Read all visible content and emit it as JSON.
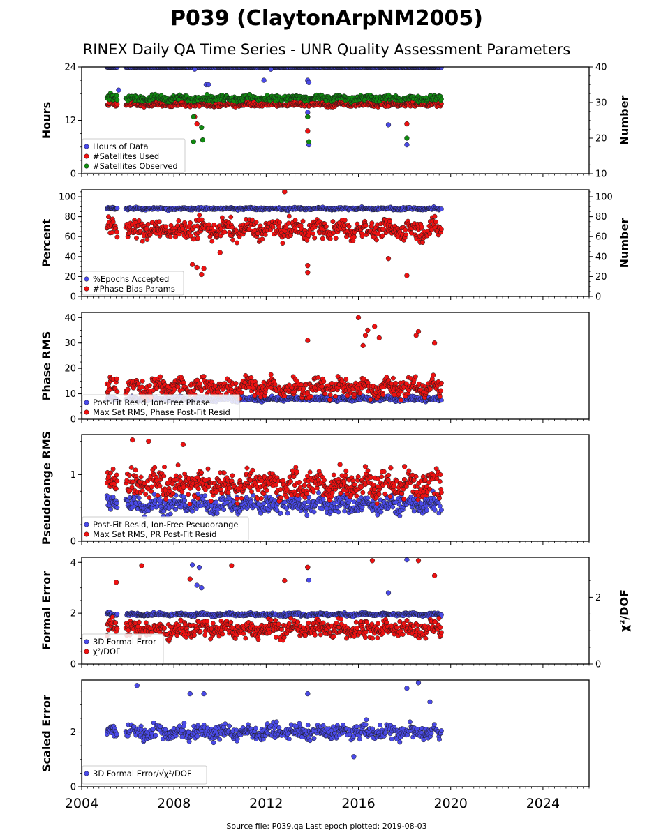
{
  "title": "P039 (ClaytonArpNM2005)",
  "subtitle": "RINEX Daily QA Time Series - UNR Quality Assessment Parameters",
  "footer": "Source file: P039.qa Last epoch plotted: 2019-08-03",
  "colors": {
    "blue": "#4a4ae8",
    "red": "#ee1111",
    "green": "#108a10",
    "edge": "#1a1a1a"
  },
  "chart_data": [
    {
      "type": "scatter",
      "ylabel": "Hours",
      "ylabel_right": "Number",
      "xlim": [
        2004,
        2026
      ],
      "ylim": [
        0,
        24
      ],
      "ylim_right": [
        10,
        40
      ],
      "yticks": [
        "0",
        "12",
        "24"
      ],
      "yticks_right": [
        "10",
        "20",
        "30",
        "40"
      ],
      "series": [
        {
          "name": "Hours of Data",
          "color": "blue",
          "axis": "left",
          "typical": 23.9,
          "spread": 0.05,
          "range": [
            2005.1,
            2019.6
          ],
          "outliers": [
            [
              2005.6,
              18.8
            ],
            [
              2008.9,
              23.5
            ],
            [
              2009.4,
              20
            ],
            [
              2009.5,
              20
            ],
            [
              2011.9,
              21
            ],
            [
              2012.2,
              23.5
            ],
            [
              2013.8,
              21
            ],
            [
              2013.85,
              20.5
            ],
            [
              2013.8,
              13.8
            ],
            [
              2013.85,
              6.5
            ],
            [
              2017.3,
              11
            ],
            [
              2018.1,
              6.5
            ]
          ]
        },
        {
          "name": "#Satellites Used",
          "color": "red",
          "axis": "right",
          "typical": 29.5,
          "spread": 0.6,
          "range": [
            2005.1,
            2019.6
          ],
          "outliers": [
            [
              2005.2,
              30
            ],
            [
              2008.9,
              26
            ],
            [
              2009.0,
              24
            ],
            [
              2009.1,
              29
            ],
            [
              2009.8,
              30
            ],
            [
              2013.8,
              26
            ],
            [
              2013.8,
              22
            ],
            [
              2017.3,
              29
            ],
            [
              2018.1,
              24
            ]
          ]
        },
        {
          "name": "#Satellites Observed",
          "color": "green",
          "axis": "right",
          "typical": 31.2,
          "spread": 0.8,
          "range": [
            2005.1,
            2019.6
          ],
          "outliers": [
            [
              2008.85,
              26
            ],
            [
              2008.85,
              19
            ],
            [
              2009.2,
              23
            ],
            [
              2009.25,
              19.5
            ],
            [
              2013.8,
              26
            ],
            [
              2013.85,
              19
            ],
            [
              2018.1,
              20
            ]
          ]
        }
      ]
    },
    {
      "type": "scatter",
      "ylabel": "Percent",
      "ylabel_right": "Number",
      "xlim": [
        2004,
        2026
      ],
      "ylim": [
        0,
        107
      ],
      "ylim_right": [
        0,
        107
      ],
      "yticks": [
        "0",
        "20",
        "40",
        "60",
        "80",
        "100"
      ],
      "yticks_right": [
        "0",
        "20",
        "40",
        "60",
        "80",
        "100"
      ],
      "series": [
        {
          "name": "%Epochs Accepted",
          "color": "blue",
          "axis": "left",
          "typical": 88,
          "spread": 1.2,
          "range": [
            2005.1,
            2019.6
          ],
          "outliers": []
        },
        {
          "name": "#Phase Bias Params",
          "color": "red",
          "axis": "right",
          "typical": 67,
          "spread": 9,
          "range": [
            2005.1,
            2019.6
          ],
          "outliers": [
            [
              2008.8,
              32
            ],
            [
              2009.0,
              29
            ],
            [
              2009.2,
              22
            ],
            [
              2009.3,
              28
            ],
            [
              2010.0,
              44
            ],
            [
              2012.8,
              105
            ],
            [
              2013.8,
              31
            ],
            [
              2013.8,
              24
            ],
            [
              2017.3,
              38
            ],
            [
              2018.1,
              21
            ]
          ]
        }
      ]
    },
    {
      "type": "scatter",
      "ylabel": "Phase RMS",
      "xlim": [
        2004,
        2026
      ],
      "ylim": [
        0,
        42
      ],
      "yticks": [
        "0",
        "10",
        "20",
        "30",
        "40"
      ],
      "series": [
        {
          "name": "Post-Fit Resid, Ion-Free Phase",
          "color": "blue",
          "axis": "left",
          "typical": 8,
          "spread": 0.9,
          "range": [
            2005.1,
            2019.6
          ],
          "outliers": []
        },
        {
          "name": "Max Sat RMS, Phase Post-Fit Resid",
          "color": "red",
          "axis": "left",
          "typical": 12.5,
          "spread": 3.5,
          "range": [
            2005.1,
            2019.6
          ],
          "outliers": [
            [
              2013.8,
              31
            ],
            [
              2016.0,
              40
            ],
            [
              2016.2,
              29
            ],
            [
              2016.3,
              33
            ],
            [
              2016.4,
              35
            ],
            [
              2016.7,
              36.5
            ],
            [
              2016.9,
              32
            ],
            [
              2018.5,
              33
            ],
            [
              2018.6,
              34.5
            ],
            [
              2019.3,
              30
            ]
          ]
        }
      ]
    },
    {
      "type": "scatter",
      "ylabel": "Pseudorange RMS",
      "xlim": [
        2004,
        2026
      ],
      "ylim": [
        0,
        1.6
      ],
      "yticks": [
        "0",
        "1"
      ],
      "series": [
        {
          "name": "Post-Fit Resid, Ion-Free Pseudorange",
          "color": "blue",
          "axis": "left",
          "typical": 0.55,
          "spread": 0.12,
          "range": [
            2005.1,
            2019.6
          ],
          "outliers": []
        },
        {
          "name": "Max Sat RMS, PR Post-Fit Resid",
          "color": "red",
          "axis": "left",
          "typical": 0.85,
          "spread": 0.2,
          "range": [
            2005.1,
            2019.6
          ],
          "outliers": [
            [
              2006.2,
              1.52
            ],
            [
              2006.9,
              1.5
            ],
            [
              2008.4,
              1.45
            ],
            [
              2015.2,
              1.15
            ],
            [
              2016.3,
              1.12
            ],
            [
              2017.4,
              1.1
            ],
            [
              2018.0,
              1.12
            ]
          ]
        }
      ]
    },
    {
      "type": "scatter",
      "ylabel": "Formal Error",
      "ylabel_right": "χ²/DOF",
      "xlim": [
        2004,
        2026
      ],
      "ylim": [
        0,
        4.2
      ],
      "ylim_right": [
        0,
        3.2
      ],
      "yticks": [
        "0",
        "2",
        "4"
      ],
      "yticks_right": [
        "0",
        "2"
      ],
      "series": [
        {
          "name": "3D Formal Error",
          "color": "blue",
          "axis": "left",
          "typical": 1.95,
          "spread": 0.06,
          "range": [
            2005.1,
            2019.6
          ],
          "outliers": [
            [
              2008.8,
              3.9
            ],
            [
              2009.1,
              3.8
            ],
            [
              2009.0,
              3.1
            ],
            [
              2009.2,
              3.0
            ],
            [
              2013.8,
              3.8
            ],
            [
              2013.85,
              3.3
            ],
            [
              2017.3,
              2.8
            ],
            [
              2018.1,
              4.1
            ]
          ]
        },
        {
          "name": "χ²/DOF",
          "color": "red",
          "axis": "right",
          "typical": 1.05,
          "spread": 0.25,
          "range": [
            2005.1,
            2019.6
          ],
          "outliers": [
            [
              2005.5,
              2.45
            ],
            [
              2006.6,
              2.95
            ],
            [
              2008.7,
              2.55
            ],
            [
              2010.5,
              2.95
            ],
            [
              2012.8,
              2.5
            ],
            [
              2013.8,
              2.9
            ],
            [
              2016.6,
              3.1
            ],
            [
              2018.6,
              3.1
            ],
            [
              2019.3,
              2.65
            ]
          ]
        }
      ]
    },
    {
      "type": "scatter",
      "ylabel": "Scaled Error",
      "xlim": [
        2004,
        2026
      ],
      "ylim": [
        0,
        3.9
      ],
      "yticks": [
        "0",
        "2"
      ],
      "series": [
        {
          "name": "3D Formal Error/√χ²/DOF",
          "color": "blue",
          "axis": "left",
          "typical": 2.0,
          "spread": 0.25,
          "range": [
            2005.1,
            2019.6
          ],
          "outliers": [
            [
              2006.4,
              3.7
            ],
            [
              2008.7,
              3.4
            ],
            [
              2009.3,
              3.4
            ],
            [
              2013.8,
              3.4
            ],
            [
              2018.1,
              3.6
            ],
            [
              2018.6,
              3.8
            ],
            [
              2015.8,
              1.1
            ],
            [
              2019.1,
              3.1
            ]
          ]
        }
      ]
    }
  ],
  "xaxis": {
    "ticks": [
      "2004",
      "2008",
      "2012",
      "2016",
      "2020",
      "2024"
    ],
    "values": [
      2004,
      2008,
      2012,
      2016,
      2020,
      2024
    ]
  }
}
